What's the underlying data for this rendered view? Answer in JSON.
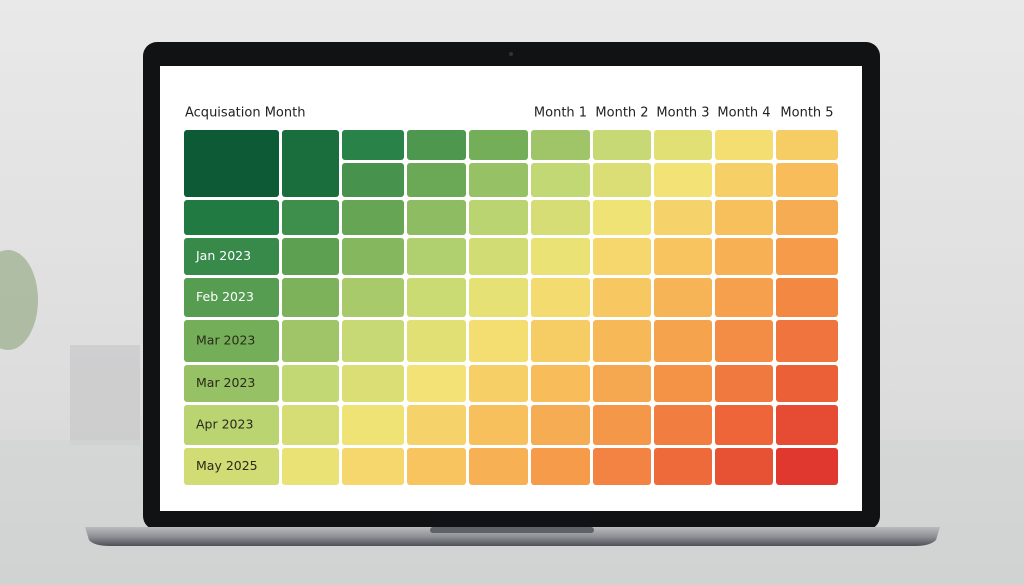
{
  "header": {
    "title": "Acquisation Month",
    "columns": [
      "Month 1",
      "Month 2",
      "Month 3",
      "Month 4",
      "Month 5"
    ]
  },
  "rows": [
    "Jan 2023",
    "Feb 2023",
    "Mar 2023",
    "Mar 2023",
    "Apr 2023",
    "May 2025"
  ]
}
